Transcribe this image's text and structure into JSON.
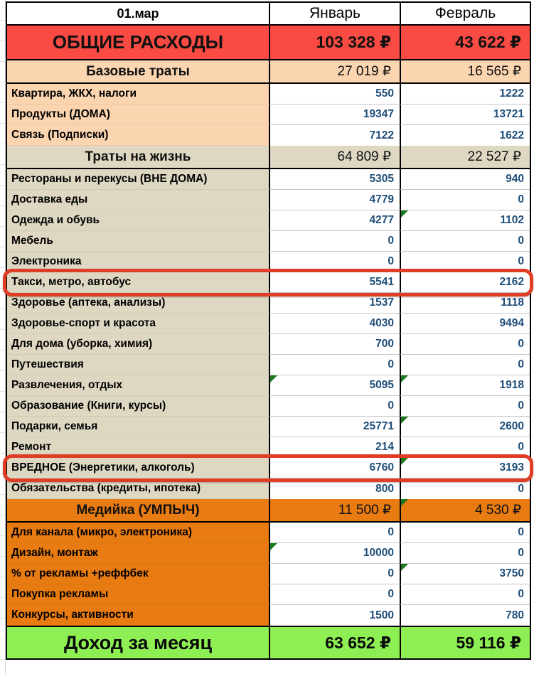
{
  "header": {
    "date": "01.мар",
    "jan": "Январь",
    "feb": "Февраль"
  },
  "total": {
    "label": "ОБЩИЕ РАСХОДЫ",
    "jan": "103 328 ₽",
    "feb": "43 622 ₽"
  },
  "sections": [
    {
      "label": "Базовые траты",
      "jan": "27 019 ₽",
      "feb": "16 565 ₽",
      "rows": [
        {
          "label": "Квартира, ЖКХ, налоги",
          "jan": "550",
          "feb": "1222"
        },
        {
          "label": "Продукты (ДОМА)",
          "jan": "19347",
          "feb": "13721"
        },
        {
          "label": "Связь (Подписки)",
          "jan": "7122",
          "feb": "1622"
        }
      ]
    },
    {
      "label": "Траты на жизнь",
      "jan": "64 809 ₽",
      "feb": "22 527 ₽",
      "rows": [
        {
          "label": "Рестораны и перекусы (ВНЕ ДОМА)",
          "jan": "5305",
          "feb": "940"
        },
        {
          "label": "Доставка еды",
          "jan": "4779",
          "feb": "0"
        },
        {
          "label": "Одежда и обувь",
          "jan": "4277",
          "feb": "1102",
          "flag_feb": true
        },
        {
          "label": "Мебель",
          "jan": "0",
          "feb": "0"
        },
        {
          "label": "Электроника",
          "jan": "0",
          "feb": "0"
        },
        {
          "label": "Такси, метро, автобус",
          "jan": "5541",
          "feb": "2162",
          "highlighted": true
        },
        {
          "label": "Здоровье (аптека, анализы)",
          "jan": "1537",
          "feb": "1118"
        },
        {
          "label": "Здоровье-спорт и красота",
          "jan": "4030",
          "feb": "9494"
        },
        {
          "label": "Для дома (уборка, химия)",
          "jan": "700",
          "feb": "0"
        },
        {
          "label": "Путешествия",
          "jan": "0",
          "feb": "0"
        },
        {
          "label": "Развлечения, отдых",
          "jan": "5095",
          "feb": "1918",
          "flag_jan": true,
          "flag_feb": true
        },
        {
          "label": "Образование (Книги, курсы)",
          "jan": "0",
          "feb": "0"
        },
        {
          "label": "Подарки, семья",
          "jan": "25771",
          "feb": "2600",
          "flag_feb": true
        },
        {
          "label": "Ремонт",
          "jan": "214",
          "feb": "0"
        },
        {
          "label": "ВРЕДНОЕ (Энергетики, алкоголь)",
          "jan": "6760",
          "feb": "3193",
          "highlighted": true,
          "flag_feb": true
        },
        {
          "label": "Обязательства (кредиты, ипотека)",
          "jan": "800",
          "feb": "0"
        }
      ]
    },
    {
      "label": "Медийка (УМПЫЧ)",
      "jan": "11 500 ₽",
      "feb": "4 530 ₽",
      "flag_feb": true,
      "rows": [
        {
          "label": "Для канала (микро, электроника)",
          "jan": "0",
          "feb": "0"
        },
        {
          "label": "Дизайн, монтаж",
          "jan": "10000",
          "feb": "0",
          "flag_jan": true
        },
        {
          "label": "% от рекламы +реффбек",
          "jan": "0",
          "feb": "3750",
          "flag_feb": true
        },
        {
          "label": "Покупка рекламы",
          "jan": "0",
          "feb": "0"
        },
        {
          "label": "Конкурсы, активности",
          "jan": "1500",
          "feb": "780"
        }
      ]
    }
  ],
  "income": {
    "label": "Доход за месяц",
    "jan": "63 652 ₽",
    "feb": "59 116 ₽"
  },
  "colors": {
    "total_bg": "#f94b43",
    "base_bg": "#fbd5b0",
    "life_bg": "#ded8c3",
    "media_bg": "#e87b12",
    "income_bg": "#8def53",
    "value_text": "#1f4e79",
    "highlight_ring": "#e03d27",
    "flag": "#1d7a1d"
  }
}
